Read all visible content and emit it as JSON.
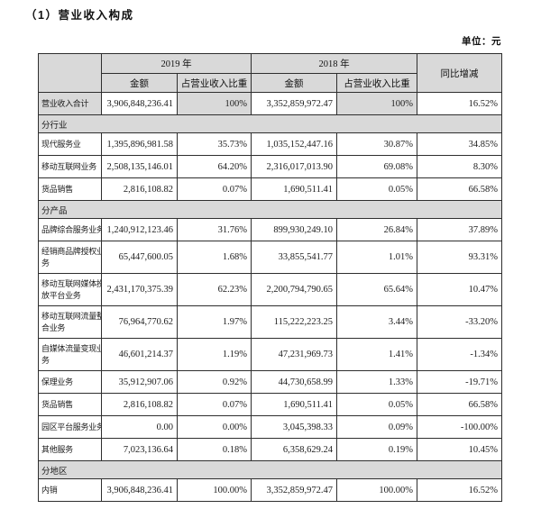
{
  "page": {
    "title": "（1）营业收入构成",
    "unit_label": "单位：元"
  },
  "table": {
    "header": {
      "corner": "",
      "year_2019": "2019 年",
      "year_2018": "2018 年",
      "amount": "金额",
      "proportion": "占营业收入比重",
      "yoy": "同比增减"
    },
    "colors": {
      "shading_bg": "#d9d9d9",
      "border": "#2e2e2e",
      "text": "#1c1c1c"
    },
    "rows": [
      {
        "type": "total",
        "label": "营业收入合计",
        "a2019": "3,906,848,236.41",
        "p2019": "100%",
        "a2018": "3,352,859,972.47",
        "p2018": "100%",
        "yoy": "16.52%"
      },
      {
        "type": "section",
        "label": "分行业"
      },
      {
        "type": "data",
        "label": "现代服务业",
        "a2019": "1,395,896,981.58",
        "p2019": "35.73%",
        "a2018": "1,035,152,447.16",
        "p2018": "30.87%",
        "yoy": "34.85%"
      },
      {
        "type": "data",
        "label": "移动互联网业务",
        "a2019": "2,508,135,146.01",
        "p2019": "64.20%",
        "a2018": "2,316,017,013.90",
        "p2018": "69.08%",
        "yoy": "8.30%"
      },
      {
        "type": "data",
        "label": "货品销售",
        "a2019": "2,816,108.82",
        "p2019": "0.07%",
        "a2018": "1,690,511.41",
        "p2018": "0.05%",
        "yoy": "66.58%"
      },
      {
        "type": "section",
        "label": "分产品"
      },
      {
        "type": "data",
        "label": "品牌综合服务业务",
        "a2019": "1,240,912,123.46",
        "p2019": "31.76%",
        "a2018": "899,930,249.10",
        "p2018": "26.84%",
        "yoy": "37.89%"
      },
      {
        "type": "data",
        "label": "经销商品牌授权业\n务",
        "a2019": "65,447,600.05",
        "p2019": "1.68%",
        "a2018": "33,855,541.77",
        "p2018": "1.01%",
        "yoy": "93.31%"
      },
      {
        "type": "data",
        "label": "移动互联网媒体投\n放平台业务",
        "a2019": "2,431,170,375.39",
        "p2019": "62.23%",
        "a2018": "2,200,794,790.65",
        "p2018": "65.64%",
        "yoy": "10.47%"
      },
      {
        "type": "data",
        "label": "移动互联网流量整\n合业务",
        "a2019": "76,964,770.62",
        "p2019": "1.97%",
        "a2018": "115,222,223.25",
        "p2018": "3.44%",
        "yoy": "-33.20%"
      },
      {
        "type": "data",
        "label": "自媒体流量变现业\n务",
        "a2019": "46,601,214.37",
        "p2019": "1.19%",
        "a2018": "47,231,969.73",
        "p2018": "1.41%",
        "yoy": "-1.34%"
      },
      {
        "type": "data",
        "label": "保理业务",
        "a2019": "35,912,907.06",
        "p2019": "0.92%",
        "a2018": "44,730,658.99",
        "p2018": "1.33%",
        "yoy": "-19.71%"
      },
      {
        "type": "data",
        "label": "货品销售",
        "a2019": "2,816,108.82",
        "p2019": "0.07%",
        "a2018": "1,690,511.41",
        "p2018": "0.05%",
        "yoy": "66.58%"
      },
      {
        "type": "data",
        "label": "园区平台服务业务",
        "a2019": "0.00",
        "p2019": "0.00%",
        "a2018": "3,045,398.33",
        "p2018": "0.09%",
        "yoy": "-100.00%"
      },
      {
        "type": "data",
        "label": "其他服务",
        "a2019": "7,023,136.64",
        "p2019": "0.18%",
        "a2018": "6,358,629.24",
        "p2018": "0.19%",
        "yoy": "10.45%"
      },
      {
        "type": "section",
        "label": "分地区"
      },
      {
        "type": "data",
        "label": "内销",
        "a2019": "3,906,848,236.41",
        "p2019": "100.00%",
        "a2018": "3,352,859,972.47",
        "p2018": "100.00%",
        "yoy": "16.52%"
      }
    ]
  }
}
